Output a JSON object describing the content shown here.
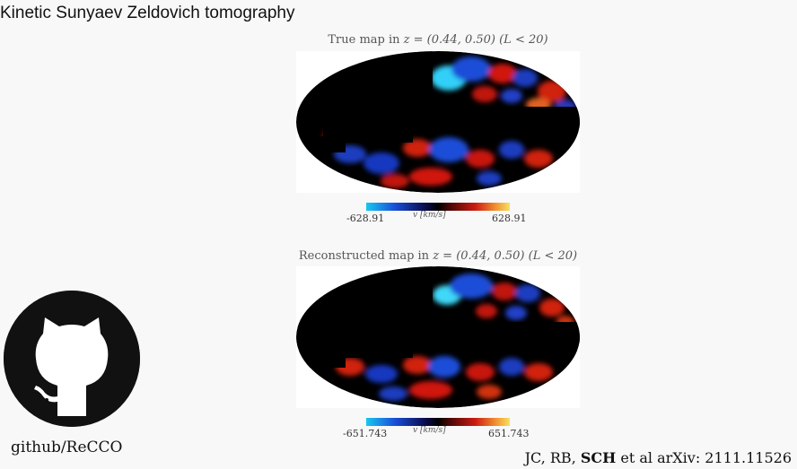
{
  "slide": {
    "title": "Kinetic Sunyaev Zeldovich tomography"
  },
  "true_map": {
    "title_prefix": "True map in ",
    "title_math": "z = (0.44, 0.50) (L < 20)",
    "colorbar": {
      "min_label": "-628.91",
      "max_label": "628.91",
      "axis_label": "v [km/s]"
    }
  },
  "reconstructed_map": {
    "title_prefix": "Reconstructed map in ",
    "title_math": "z = (0.44, 0.50) (L < 20)",
    "colorbar": {
      "min_label": "-651.743",
      "max_label": "651.743",
      "axis_label": "v [km/s]"
    }
  },
  "github": {
    "icon": "github-octocat-icon",
    "caption": "github/ReCCO"
  },
  "citation": {
    "prefix": "JC, RB, ",
    "bold": "SCH",
    "suffix": " et al arXiv: 2111.11526"
  },
  "colors": {
    "negative_extreme": "#18c8f0",
    "negative": "#1a4ed8",
    "zero": "#000000",
    "positive": "#cc1c10",
    "positive_extreme": "#f8e060"
  }
}
